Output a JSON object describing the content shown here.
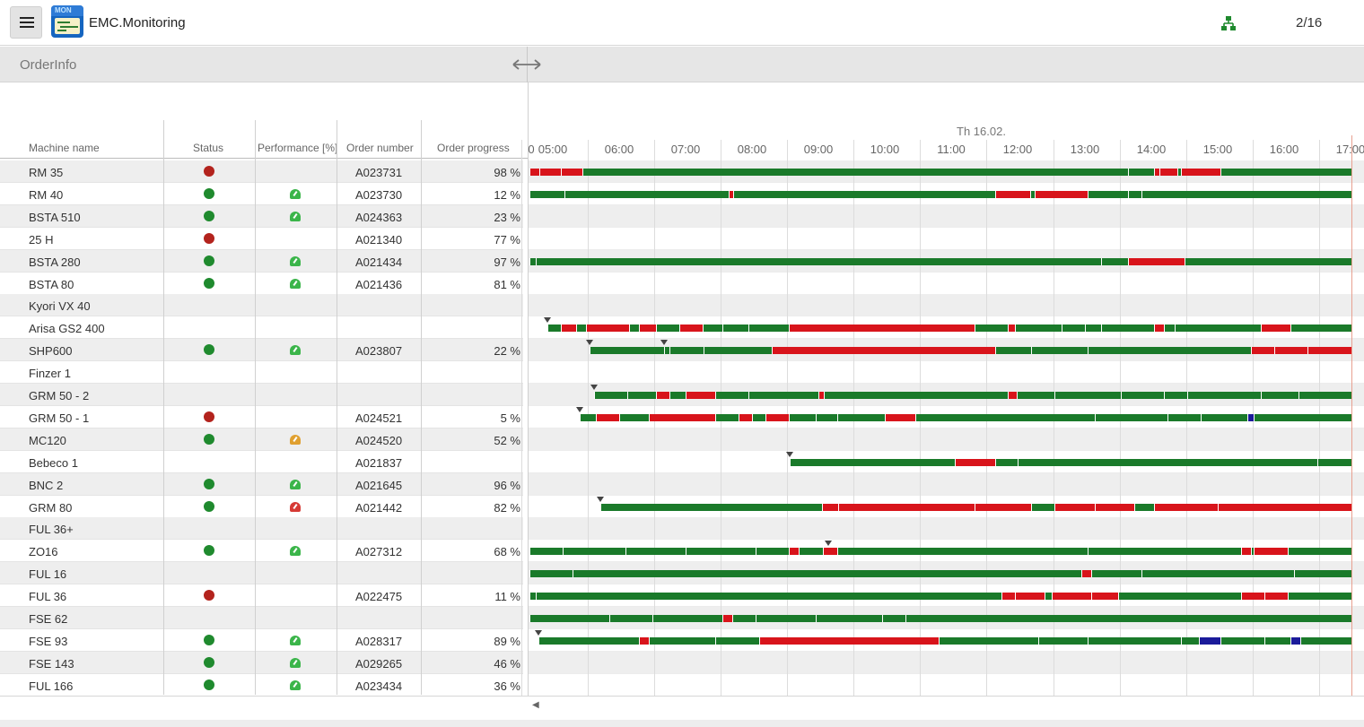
{
  "header": {
    "app_title": "EMC.Monitoring",
    "logo_text": "MON",
    "page_counter": "2/16"
  },
  "orderinfo": {
    "title": "OrderInfo"
  },
  "table": {
    "columns": [
      "Machine name",
      "Status",
      "Performance [%]",
      "Order number",
      "Order progress"
    ],
    "rows": [
      {
        "name": "RM 35",
        "status": "red",
        "perf": "",
        "order": "A023731",
        "progress": "98 %"
      },
      {
        "name": "RM 40",
        "status": "green",
        "perf": "green",
        "order": "A023730",
        "progress": "12 %"
      },
      {
        "name": "BSTA 510",
        "status": "green",
        "perf": "green",
        "order": "A024363",
        "progress": "23 %"
      },
      {
        "name": "25 H",
        "status": "red",
        "perf": "",
        "order": "A021340",
        "progress": "77 %"
      },
      {
        "name": "BSTA 280",
        "status": "green",
        "perf": "green",
        "order": "A021434",
        "progress": "97 %"
      },
      {
        "name": "BSTA 80",
        "status": "green",
        "perf": "green",
        "order": "A021436",
        "progress": "81 %"
      },
      {
        "name": "Kyori VX 40",
        "status": "",
        "perf": "",
        "order": "",
        "progress": ""
      },
      {
        "name": "Arisa GS2 400",
        "status": "",
        "perf": "",
        "order": "",
        "progress": ""
      },
      {
        "name": "SHP600",
        "status": "green",
        "perf": "green",
        "order": "A023807",
        "progress": "22 %"
      },
      {
        "name": "Finzer 1",
        "status": "",
        "perf": "",
        "order": "",
        "progress": ""
      },
      {
        "name": "GRM 50 - 2",
        "status": "",
        "perf": "",
        "order": "",
        "progress": ""
      },
      {
        "name": "GRM 50 - 1",
        "status": "red",
        "perf": "",
        "order": "A024521",
        "progress": "5 %"
      },
      {
        "name": "MC120",
        "status": "green",
        "perf": "orange",
        "order": "A024520",
        "progress": "52 %"
      },
      {
        "name": "Bebeco 1",
        "status": "",
        "perf": "",
        "order": "A021837",
        "progress": ""
      },
      {
        "name": "BNC 2",
        "status": "green",
        "perf": "green",
        "order": "A021645",
        "progress": "96 %"
      },
      {
        "name": "GRM 80",
        "status": "green",
        "perf": "red",
        "order": "A021442",
        "progress": "82 %"
      },
      {
        "name": "FUL 36+",
        "status": "",
        "perf": "",
        "order": "",
        "progress": ""
      },
      {
        "name": "ZO16",
        "status": "green",
        "perf": "green",
        "order": "A027312",
        "progress": "68 %"
      },
      {
        "name": "FUL 16",
        "status": "",
        "perf": "",
        "order": "",
        "progress": ""
      },
      {
        "name": "FUL 36",
        "status": "red",
        "perf": "",
        "order": "A022475",
        "progress": "11 %"
      },
      {
        "name": "FSE 62",
        "status": "",
        "perf": "",
        "order": "",
        "progress": ""
      },
      {
        "name": "FSE 93",
        "status": "green",
        "perf": "green",
        "order": "A028317",
        "progress": "89 %"
      },
      {
        "name": "FSE 143",
        "status": "green",
        "perf": "green",
        "order": "A029265",
        "progress": "46 %"
      },
      {
        "name": "FUL 166",
        "status": "green",
        "perf": "green",
        "order": "A023434",
        "progress": "36 %"
      }
    ]
  },
  "timeline": {
    "date": "Th 16.02.",
    "start_hour": 4.65,
    "end_hour": 17.15,
    "now_hour": 17.02,
    "tick_labels": [
      "0",
      "05:00",
      "06:00",
      "07:00",
      "08:00",
      "09:00",
      "10:00",
      "11:00",
      "12:00",
      "13:00",
      "14:00",
      "15:00",
      "16:00",
      "17:00"
    ],
    "tick_hours": [
      4.65,
      5,
      6,
      7,
      8,
      9,
      10,
      11,
      12,
      13,
      14,
      15,
      16,
      17
    ],
    "rows": [
      {
        "start": 4.65,
        "segs": [
          [
            "r",
            4.65,
            4.8
          ],
          [
            "r",
            4.8,
            5.12
          ],
          [
            "r",
            5.12,
            5.45
          ],
          [
            "g",
            5.45,
            13.65
          ],
          [
            "g",
            13.65,
            14.05
          ],
          [
            "r",
            14.05,
            14.12
          ],
          [
            "r",
            14.12,
            14.4
          ],
          [
            "g",
            14.4,
            14.45
          ],
          [
            "r",
            14.45,
            15.05
          ],
          [
            "g",
            15.05,
            17.02
          ]
        ]
      },
      {
        "start": 4.65,
        "segs": [
          [
            "g",
            4.65,
            5.17
          ],
          [
            "g",
            5.17,
            7.65
          ],
          [
            "r",
            7.65,
            7.72
          ],
          [
            "g",
            7.72,
            11.65
          ],
          [
            "r",
            11.65,
            12.18
          ],
          [
            "g",
            12.18,
            12.25
          ],
          [
            "r",
            12.25,
            13.05
          ],
          [
            "g",
            13.05,
            13.65
          ],
          [
            "g",
            13.65,
            13.85
          ],
          [
            "g",
            13.85,
            17.02
          ]
        ]
      },
      {
        "start": null,
        "segs": []
      },
      {
        "start": null,
        "segs": []
      },
      {
        "start": 4.65,
        "segs": [
          [
            "g",
            4.65,
            4.75
          ],
          [
            "g",
            4.75,
            13.25
          ],
          [
            "g",
            13.25,
            13.65
          ],
          [
            "r",
            13.65,
            14.5
          ],
          [
            "g",
            14.5,
            17.02
          ]
        ]
      },
      {
        "start": null,
        "segs": []
      },
      {
        "start": null,
        "segs": []
      },
      {
        "start": 4.92,
        "marker": 4.92,
        "segs": [
          [
            "g",
            4.92,
            5.12
          ],
          [
            "r",
            5.12,
            5.35
          ],
          [
            "g",
            5.35,
            5.5
          ],
          [
            "r",
            5.5,
            6.15
          ],
          [
            "g",
            6.15,
            6.3
          ],
          [
            "r",
            6.3,
            6.55
          ],
          [
            "g",
            6.55,
            6.9
          ],
          [
            "r",
            6.9,
            7.25
          ],
          [
            "g",
            7.25,
            7.55
          ],
          [
            "g",
            7.55,
            7.95
          ],
          [
            "g",
            7.95,
            8.55
          ],
          [
            "r",
            8.55,
            11.35
          ],
          [
            "g",
            11.35,
            11.85
          ],
          [
            "r",
            11.85,
            11.95
          ],
          [
            "g",
            11.95,
            12.65
          ],
          [
            "g",
            12.65,
            13.0
          ],
          [
            "g",
            13.0,
            13.25
          ],
          [
            "g",
            13.25,
            14.05
          ],
          [
            "r",
            14.05,
            14.2
          ],
          [
            "g",
            14.2,
            14.35
          ],
          [
            "g",
            14.35,
            15.65
          ],
          [
            "r",
            15.65,
            16.1
          ],
          [
            "g",
            16.1,
            17.02
          ]
        ]
      },
      {
        "start": 5.55,
        "marker": 5.55,
        "marker2": 6.67,
        "segs": [
          [
            "g",
            5.55,
            6.67
          ],
          [
            "g",
            6.67,
            6.75
          ],
          [
            "g",
            6.75,
            7.27
          ],
          [
            "g",
            7.27,
            8.3
          ],
          [
            "r",
            8.3,
            11.65
          ],
          [
            "g",
            11.65,
            12.2
          ],
          [
            "g",
            12.2,
            13.05
          ],
          [
            "g",
            13.05,
            15.5
          ],
          [
            "r",
            15.5,
            15.85
          ],
          [
            "r",
            15.85,
            16.35
          ],
          [
            "r",
            16.35,
            17.02
          ]
        ]
      },
      {
        "start": null,
        "segs": []
      },
      {
        "start": 5.62,
        "marker": 5.62,
        "segs": [
          [
            "g",
            5.62,
            6.12
          ],
          [
            "g",
            6.12,
            6.55
          ],
          [
            "r",
            6.55,
            6.75
          ],
          [
            "g",
            6.75,
            7.0
          ],
          [
            "r",
            7.0,
            7.45
          ],
          [
            "g",
            7.45,
            7.95
          ],
          [
            "g",
            7.95,
            9.0
          ],
          [
            "r",
            9.0,
            9.08
          ],
          [
            "g",
            9.08,
            11.85
          ],
          [
            "r",
            11.85,
            11.98
          ],
          [
            "g",
            11.98,
            12.55
          ],
          [
            "g",
            12.55,
            13.55
          ],
          [
            "g",
            13.55,
            14.2
          ],
          [
            "g",
            14.2,
            14.55
          ],
          [
            "g",
            14.55,
            15.65
          ],
          [
            "g",
            15.65,
            16.22
          ],
          [
            "g",
            16.22,
            17.02
          ]
        ]
      },
      {
        "start": 5.4,
        "marker": 5.4,
        "segs": [
          [
            "g",
            5.4,
            5.65
          ],
          [
            "r",
            5.65,
            6.0
          ],
          [
            "g",
            6.0,
            6.45
          ],
          [
            "r",
            6.45,
            7.45
          ],
          [
            "g",
            7.45,
            7.8
          ],
          [
            "r",
            7.8,
            8.0
          ],
          [
            "g",
            8.0,
            8.2
          ],
          [
            "r",
            8.2,
            8.55
          ],
          [
            "g",
            8.55,
            8.95
          ],
          [
            "g",
            8.95,
            9.28
          ],
          [
            "g",
            9.28,
            10.0
          ],
          [
            "r",
            10.0,
            10.45
          ],
          [
            "g",
            10.45,
            13.15
          ],
          [
            "g",
            13.15,
            14.25
          ],
          [
            "g",
            14.25,
            14.75
          ],
          [
            "g",
            14.75,
            15.45
          ],
          [
            "b",
            15.45,
            15.55
          ],
          [
            "g",
            15.55,
            17.02
          ]
        ]
      },
      {
        "start": null,
        "segs": []
      },
      {
        "start": 8.57,
        "marker": 8.57,
        "segs": [
          [
            "g",
            8.57,
            11.05
          ],
          [
            "r",
            11.05,
            11.65
          ],
          [
            "g",
            11.65,
            12.0
          ],
          [
            "g",
            12.0,
            16.5
          ],
          [
            "g",
            16.5,
            17.02
          ]
        ]
      },
      {
        "start": null,
        "segs": []
      },
      {
        "start": 5.72,
        "marker": 5.72,
        "segs": [
          [
            "g",
            5.72,
            9.05
          ],
          [
            "r",
            9.05,
            9.3
          ],
          [
            "r",
            9.3,
            11.35
          ],
          [
            "r",
            11.35,
            12.2
          ],
          [
            "g",
            12.2,
            12.55
          ],
          [
            "r",
            12.55,
            13.15
          ],
          [
            "r",
            13.15,
            13.75
          ],
          [
            "g",
            13.75,
            14.05
          ],
          [
            "r",
            14.05,
            15.0
          ],
          [
            "r",
            15.0,
            17.02
          ]
        ]
      },
      {
        "start": null,
        "segs": []
      },
      {
        "start": 4.65,
        "marker": 9.15,
        "segs": [
          [
            "g",
            4.65,
            5.15
          ],
          [
            "g",
            5.15,
            6.1
          ],
          [
            "g",
            6.1,
            7.0
          ],
          [
            "g",
            7.0,
            8.05
          ],
          [
            "g",
            8.05,
            8.55
          ],
          [
            "r",
            8.55,
            8.7
          ],
          [
            "g",
            8.7,
            9.07
          ],
          [
            "r",
            9.07,
            9.28
          ],
          [
            "g",
            9.28,
            13.05
          ],
          [
            "g",
            13.05,
            15.35
          ],
          [
            "r",
            15.35,
            15.5
          ],
          [
            "g",
            15.5,
            15.55
          ],
          [
            "r",
            15.55,
            16.05
          ],
          [
            "g",
            16.05,
            17.02
          ]
        ]
      },
      {
        "start": 4.65,
        "segs": [
          [
            "g",
            4.65,
            5.3
          ],
          [
            "g",
            5.3,
            12.95
          ],
          [
            "r",
            12.95,
            13.1
          ],
          [
            "g",
            13.1,
            13.85
          ],
          [
            "g",
            13.85,
            16.15
          ],
          [
            "g",
            16.15,
            17.02
          ]
        ]
      },
      {
        "start": 4.65,
        "segs": [
          [
            "g",
            4.65,
            4.75
          ],
          [
            "g",
            4.75,
            11.75
          ],
          [
            "r",
            11.75,
            11.95
          ],
          [
            "r",
            11.95,
            12.4
          ],
          [
            "g",
            12.4,
            12.5
          ],
          [
            "r",
            12.5,
            13.1
          ],
          [
            "r",
            13.1,
            13.5
          ],
          [
            "g",
            13.5,
            15.35
          ],
          [
            "r",
            15.35,
            15.7
          ],
          [
            "r",
            15.7,
            16.05
          ],
          [
            "g",
            16.05,
            17.02
          ]
        ]
      },
      {
        "start": 4.65,
        "segs": [
          [
            "g",
            4.65,
            5.85
          ],
          [
            "g",
            5.85,
            6.5
          ],
          [
            "g",
            6.5,
            7.55
          ],
          [
            "r",
            7.55,
            7.7
          ],
          [
            "g",
            7.7,
            8.05
          ],
          [
            "g",
            8.05,
            8.95
          ],
          [
            "g",
            8.95,
            9.95
          ],
          [
            "g",
            9.95,
            10.3
          ],
          [
            "g",
            10.3,
            17.02
          ]
        ]
      },
      {
        "start": 4.78,
        "marker": 4.78,
        "segs": [
          [
            "g",
            4.78,
            6.3
          ],
          [
            "r",
            6.3,
            6.45
          ],
          [
            "g",
            6.45,
            7.45
          ],
          [
            "g",
            7.45,
            8.1
          ],
          [
            "r",
            8.1,
            10.8
          ],
          [
            "g",
            10.8,
            12.3
          ],
          [
            "g",
            12.3,
            13.05
          ],
          [
            "g",
            13.05,
            14.45
          ],
          [
            "g",
            14.45,
            14.72
          ],
          [
            "b",
            14.72,
            15.05
          ],
          [
            "g",
            15.05,
            15.7
          ],
          [
            "g",
            15.7,
            16.1
          ],
          [
            "b",
            16.1,
            16.25
          ],
          [
            "g",
            16.25,
            17.02
          ]
        ]
      },
      {
        "start": null,
        "segs": []
      },
      {
        "start": null,
        "segs": []
      }
    ]
  },
  "colors": {
    "green": "#1a7a2a",
    "red": "#d8141b",
    "blue": "#1b1b9a",
    "status_green": "#1f8a2e",
    "status_red": "#b3231d",
    "perf_green": "#3bb54a",
    "perf_orange": "#e0a030",
    "perf_red": "#d63a35",
    "network_icon": "#1f8a2e"
  },
  "icons": {
    "menu": "hamburger-icon",
    "logo": "app-logo-icon",
    "network": "network-icon",
    "resize": "resize-arrows-icon",
    "scroll_left": "scroll-left-arrow-icon"
  },
  "bottom": {
    "scroll_left_glyph": "◀"
  }
}
